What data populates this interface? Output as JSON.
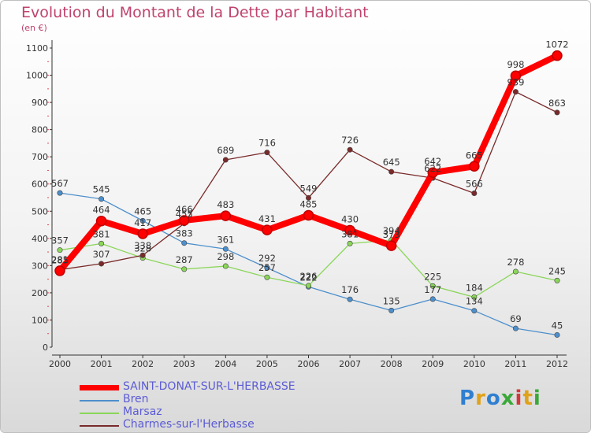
{
  "title": "Evolution du Montant de la Dette par Habitant",
  "subtitle": "(en €)",
  "logo": {
    "letters": [
      "P",
      "r",
      "o",
      "x",
      "i",
      "t",
      "i"
    ],
    "colors": [
      "#2f7fd1",
      "#e0a21a",
      "#2f7fd1",
      "#3aa83a",
      "#d23a3a",
      "#e0a21a",
      "#3aa83a"
    ]
  },
  "chart_data": {
    "type": "line",
    "title": "Evolution du Montant de la Dette par Habitant",
    "ylabel": "(en €)",
    "x": [
      "2000",
      "2001",
      "2002",
      "2003",
      "2004",
      "2005",
      "2006",
      "2007",
      "2008",
      "2009",
      "2010",
      "2011",
      "2012"
    ],
    "ylim": [
      0,
      1100
    ],
    "yticks": [
      0,
      100,
      200,
      300,
      400,
      500,
      600,
      700,
      800,
      900,
      1000,
      1100
    ],
    "grid": false,
    "legend": "bottom",
    "series": [
      {
        "name": "Bren",
        "color": "#4d8fcc",
        "values": [
          567,
          545,
          465,
          383,
          361,
          292,
          222,
          176,
          135,
          177,
          134,
          69,
          45
        ]
      },
      {
        "name": "Marsaz",
        "color": "#8bd65a",
        "values": [
          357,
          381,
          328,
          287,
          298,
          257,
          226,
          381,
          394,
          225,
          184,
          278,
          245
        ]
      },
      {
        "name": "Charmes-sur-l'Herbasse",
        "color": "#7a2a2a",
        "values": [
          285,
          307,
          338,
          455,
          689,
          716,
          549,
          726,
          645,
          622,
          566,
          939,
          863
        ]
      },
      {
        "name": "SAINT-DONAT-SUR-L'HERBASSE",
        "color": "#ff0000",
        "values": [
          281,
          464,
          417,
          466,
          483,
          431,
          485,
          430,
          373,
          642,
          665,
          998,
          1072
        ]
      }
    ]
  }
}
